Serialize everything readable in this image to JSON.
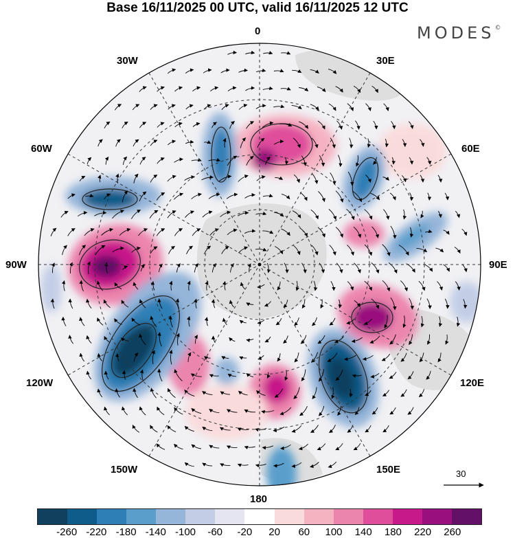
{
  "title": "Base 16/11/2025 00 UTC, valid 16/11/2025 12 UTC",
  "brand": "MODES",
  "brand_mark": "©",
  "longitudes": {
    "top": "0",
    "w30": "30W",
    "e30": "30E",
    "w60": "60W",
    "e60": "60E",
    "w90": "90W",
    "e90": "90E",
    "w120": "120W",
    "e120": "120E",
    "w150": "150W",
    "e150": "150E",
    "bottom": "180"
  },
  "reference_vector": {
    "label": "30",
    "icon": "arrow-icon"
  },
  "colorbar": {
    "colors": [
      "#10405e",
      "#0f5b8a",
      "#2e7fb6",
      "#5a9fcc",
      "#95b5d9",
      "#c3cde6",
      "#e5e5f2",
      "#ffffff",
      "#fadbdb",
      "#f5b3c2",
      "#ec85ae",
      "#df4e9b",
      "#c7198a",
      "#9a0f7e",
      "#621068"
    ],
    "ticks": [
      "-260",
      "-220",
      "-180",
      "-140",
      "-100",
      "-60",
      "-20",
      "20",
      "60",
      "100",
      "140",
      "180",
      "220",
      "260"
    ]
  }
}
